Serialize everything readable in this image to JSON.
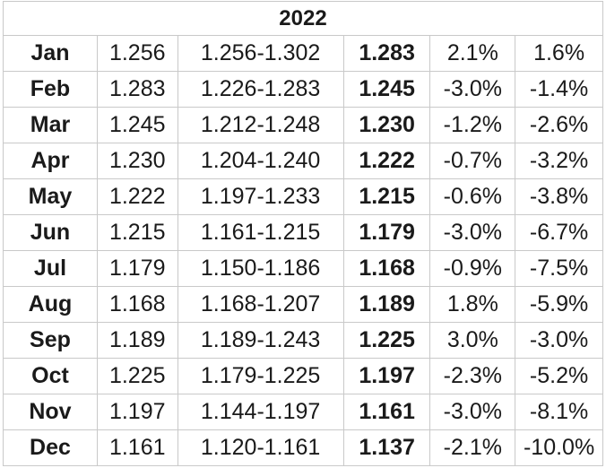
{
  "table": {
    "year": "2022",
    "rows": [
      {
        "month": "Jan",
        "open": "1.256",
        "range": "1.256-1.302",
        "close": "1.283",
        "change_month": "2.1%",
        "change_ytd": "1.6%"
      },
      {
        "month": "Feb",
        "open": "1.283",
        "range": "1.226-1.283",
        "close": "1.245",
        "change_month": "-3.0%",
        "change_ytd": "-1.4%"
      },
      {
        "month": "Mar",
        "open": "1.245",
        "range": "1.212-1.248",
        "close": "1.230",
        "change_month": "-1.2%",
        "change_ytd": "-2.6%"
      },
      {
        "month": "Apr",
        "open": "1.230",
        "range": "1.204-1.240",
        "close": "1.222",
        "change_month": "-0.7%",
        "change_ytd": "-3.2%"
      },
      {
        "month": "May",
        "open": "1.222",
        "range": "1.197-1.233",
        "close": "1.215",
        "change_month": "-0.6%",
        "change_ytd": "-3.8%"
      },
      {
        "month": "Jun",
        "open": "1.215",
        "range": "1.161-1.215",
        "close": "1.179",
        "change_month": "-3.0%",
        "change_ytd": "-6.7%"
      },
      {
        "month": "Jul",
        "open": "1.179",
        "range": "1.150-1.186",
        "close": "1.168",
        "change_month": "-0.9%",
        "change_ytd": "-7.5%"
      },
      {
        "month": "Aug",
        "open": "1.168",
        "range": "1.168-1.207",
        "close": "1.189",
        "change_month": "1.8%",
        "change_ytd": "-5.9%"
      },
      {
        "month": "Sep",
        "open": "1.189",
        "range": "1.189-1.243",
        "close": "1.225",
        "change_month": "3.0%",
        "change_ytd": "-3.0%"
      },
      {
        "month": "Oct",
        "open": "1.225",
        "range": "1.179-1.225",
        "close": "1.197",
        "change_month": "-2.3%",
        "change_ytd": "-5.2%"
      },
      {
        "month": "Nov",
        "open": "1.197",
        "range": "1.144-1.197",
        "close": "1.161",
        "change_month": "-3.0%",
        "change_ytd": "-8.1%"
      },
      {
        "month": "Dec",
        "open": "1.161",
        "range": "1.120-1.161",
        "close": "1.137",
        "change_month": "-2.1%",
        "change_ytd": "-10.0%"
      }
    ]
  }
}
